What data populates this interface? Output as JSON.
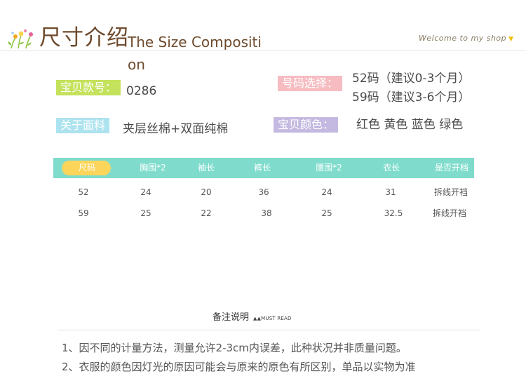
{
  "header": {
    "title_cn": "尺寸介绍",
    "title_en": "The Size Composition",
    "welcome": "Welcome to my shop",
    "logo_icon": "flowers-icon",
    "arrow_icon": "triangle-down-icon"
  },
  "info": {
    "style_label": "宝贝款号：",
    "style_value": "0286",
    "size_label": "号码选择：",
    "size_options": [
      "52码（建议0-3个月）",
      "59码（建议3-6个月）"
    ],
    "fabric_label": "关于面料",
    "fabric_value": "夹层丝棉+双面纯棉",
    "color_label": "宝贝颜色：",
    "color_value": "红色 黄色 蓝色 绿色"
  },
  "table": {
    "headers": [
      "尺码",
      "胸围*2",
      "袖长",
      "裤长",
      "腰围*2",
      "衣长",
      "是否开档"
    ],
    "rows": [
      [
        "52",
        "24",
        "20",
        "36",
        "24",
        "31",
        "拆线开裆"
      ],
      [
        "59",
        "25",
        "22",
        "38",
        "25",
        "32.5",
        "拆线开裆"
      ]
    ]
  },
  "notes": {
    "title": "备注说明",
    "subtitle": "▲▲MUST READ",
    "items": [
      "1、因不同的计量方法，测量允许2-3cm内误差，此种状况并非质量问题。",
      "2、衣服的颜色因灯光的原因可能会与原来的原色有所区别，单品以实物为准"
    ]
  },
  "colors": {
    "header_bar": "#7fdccc",
    "size_pill": "#fcd55a",
    "label_green": "#c4e25c",
    "label_pink": "#f6bcc1",
    "label_blue": "#ade3ef",
    "label_purple": "#c4b9e0",
    "title_brown": "#6e4a2c"
  }
}
